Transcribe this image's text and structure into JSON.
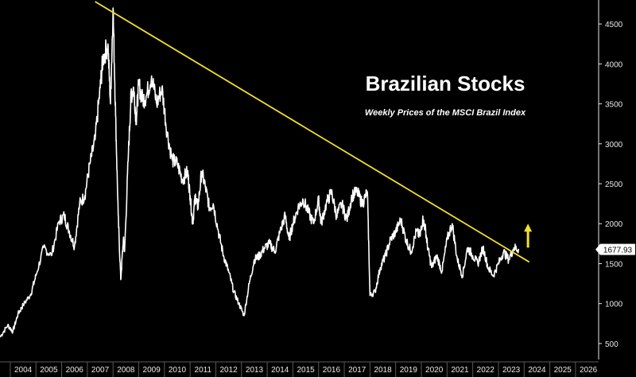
{
  "chart_data": {
    "type": "line",
    "title": "Brazilian Stocks",
    "subtitle": "Weekly Prices of the MSCI Brazil Index",
    "xlabel": "",
    "ylabel": "",
    "xlim": [
      2003.6,
      2026.9
    ],
    "ylim": [
      300,
      4800
    ],
    "x_ticks": [
      "2004",
      "2005",
      "2006",
      "2007",
      "2008",
      "2009",
      "2010",
      "2011",
      "2012",
      "2013",
      "2014",
      "2015",
      "2016",
      "2017",
      "2018",
      "2019",
      "2020",
      "2021",
      "2022",
      "2023",
      "2024",
      "2025",
      "2026"
    ],
    "y_ticks": [
      500,
      1000,
      1500,
      2000,
      2500,
      3000,
      3500,
      4000,
      4500
    ],
    "last_value_label": "1677.93",
    "series": [
      {
        "color": "#ffffff",
        "x": [
          2003.6,
          2003.9,
          2004.1,
          2004.3,
          2004.5,
          2004.8,
          2005.0,
          2005.3,
          2005.6,
          2005.9,
          2006.1,
          2006.3,
          2006.5,
          2006.7,
          2006.9,
          2007.1,
          2007.3,
          2007.5,
          2007.6,
          2007.8,
          2007.9,
          2008.0,
          2008.1,
          2008.2,
          2008.3,
          2008.4,
          2008.45,
          2008.6,
          2008.7,
          2008.8,
          2008.9,
          2009.0,
          2009.15,
          2009.3,
          2009.5,
          2009.7,
          2009.9,
          2010.1,
          2010.3,
          2010.5,
          2010.7,
          2010.9,
          2011.0,
          2011.1,
          2011.2,
          2011.3,
          2011.45,
          2011.6,
          2011.75,
          2011.9,
          2012.1,
          2012.3,
          2012.5,
          2012.7,
          2012.9,
          2013.1,
          2013.3,
          2013.5,
          2013.7,
          2013.9,
          2014.1,
          2014.3,
          2014.5,
          2014.7,
          2014.85,
          2015.0,
          2015.2,
          2015.4,
          2015.6,
          2015.8,
          2016.0,
          2016.1,
          2016.3,
          2016.5,
          2016.7,
          2016.9,
          2017.1,
          2017.3,
          2017.5,
          2017.7,
          2017.9,
          2018.0,
          2018.2,
          2018.4,
          2018.6,
          2018.8,
          2019.0,
          2019.2,
          2019.4,
          2019.6,
          2019.8,
          2019.95,
          2020.05,
          2020.15,
          2020.25,
          2020.4,
          2020.6,
          2020.8,
          2021.0,
          2021.2,
          2021.4,
          2021.6,
          2021.8,
          2022.0,
          2022.2,
          2022.4,
          2022.6,
          2022.8,
          2023.0,
          2023.2,
          2023.4,
          2023.6,
          2023.8
        ],
        "values": [
          580,
          730,
          650,
          870,
          980,
          1120,
          1350,
          1700,
          1600,
          2030,
          2100,
          1900,
          1720,
          2250,
          2350,
          2750,
          3050,
          3700,
          4050,
          4250,
          3500,
          4700,
          3350,
          2100,
          1300,
          1800,
          1650,
          2900,
          3600,
          3700,
          3300,
          3750,
          3550,
          3600,
          3850,
          3500,
          3700,
          3150,
          2800,
          2750,
          2550,
          2650,
          2350,
          2000,
          2350,
          2200,
          2650,
          2450,
          2200,
          2250,
          1900,
          1600,
          1400,
          1150,
          1000,
          850,
          1250,
          1550,
          1600,
          1700,
          1750,
          1650,
          1900,
          2100,
          1800,
          2000,
          2200,
          2300,
          2150,
          2000,
          2300,
          2000,
          2250,
          2400,
          2100,
          2250,
          2050,
          2350,
          2400,
          2250,
          2400,
          1100,
          1150,
          1450,
          1600,
          1800,
          1900,
          2050,
          1800,
          1650,
          1900,
          1850,
          2050,
          1950,
          1700,
          1450,
          1600,
          1400,
          1800,
          2000,
          1550,
          1350,
          1700,
          1600,
          1500,
          1700,
          1450,
          1350,
          1500,
          1650,
          1550,
          1700,
          1677.93
        ]
      },
      {
        "color": "#f3e02a",
        "x": [
          2007.3,
          2024.2
        ],
        "values": [
          4780,
          1520
        ]
      }
    ],
    "annotation": {
      "type": "up-arrow",
      "color": "#f3e02a"
    }
  }
}
